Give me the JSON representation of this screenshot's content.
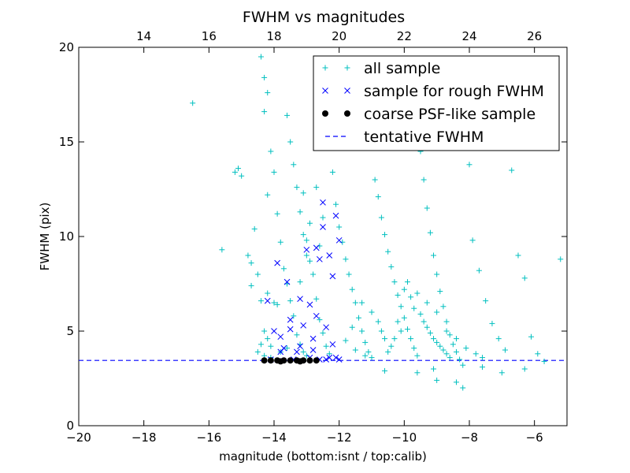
{
  "chart_data": {
    "type": "scatter",
    "title": "FWHM vs magnitudes",
    "xlabel": "magnitude (bottom:isnt / top:calib)",
    "ylabel": "FWHM (pix)",
    "xlim": [
      -20,
      -5
    ],
    "ylim": [
      0,
      20
    ],
    "x_ticks": [
      -20,
      -18,
      -16,
      -14,
      -12,
      -10,
      -8,
      -6
    ],
    "x_tick_labels": [
      "−20",
      "−18",
      "−16",
      "−14",
      "−12",
      "−10",
      "−8",
      "−6"
    ],
    "y_ticks": [
      0,
      5,
      10,
      15,
      20
    ],
    "y_tick_labels": [
      "0",
      "5",
      "10",
      "15",
      "20"
    ],
    "top_axis": {
      "offset": 32,
      "ticks": [
        14,
        16,
        18,
        20,
        22,
        24,
        26
      ],
      "tick_labels": [
        "14",
        "16",
        "18",
        "20",
        "22",
        "24",
        "26"
      ]
    },
    "grid": false,
    "legend_position": "top-right",
    "series": [
      {
        "name": "all sample",
        "marker": "plus",
        "color": "#00bfbf",
        "points": [
          [
            -16.5,
            17.05
          ],
          [
            -15.6,
            9.3
          ],
          [
            -15.2,
            13.4
          ],
          [
            -15.1,
            13.6
          ],
          [
            -15.0,
            13.2
          ],
          [
            -14.8,
            9.0
          ],
          [
            -14.7,
            8.6
          ],
          [
            -14.7,
            7.4
          ],
          [
            -14.6,
            10.4
          ],
          [
            -14.5,
            8.0
          ],
          [
            -14.4,
            6.6
          ],
          [
            -14.3,
            5.0
          ],
          [
            -14.2,
            4.6
          ],
          [
            -14.1,
            4.2
          ],
          [
            -14.2,
            12.2
          ],
          [
            -14.3,
            16.6
          ],
          [
            -14.4,
            19.5
          ],
          [
            -14.3,
            18.4
          ],
          [
            -14.2,
            17.6
          ],
          [
            -14.1,
            14.5
          ],
          [
            -14.0,
            13.4
          ],
          [
            -13.9,
            11.2
          ],
          [
            -13.8,
            9.7
          ],
          [
            -13.7,
            8.3
          ],
          [
            -13.6,
            7.5
          ],
          [
            -13.5,
            6.6
          ],
          [
            -13.4,
            5.8
          ],
          [
            -13.3,
            4.8
          ],
          [
            -13.2,
            4.3
          ],
          [
            -13.1,
            3.9
          ],
          [
            -13.0,
            3.7
          ],
          [
            -13.6,
            16.4
          ],
          [
            -13.5,
            15.0
          ],
          [
            -13.4,
            13.8
          ],
          [
            -13.3,
            12.6
          ],
          [
            -13.2,
            11.3
          ],
          [
            -13.1,
            10.1
          ],
          [
            -13.0,
            9.0
          ],
          [
            -12.8,
            8.0
          ],
          [
            -12.7,
            6.7
          ],
          [
            -12.6,
            5.6
          ],
          [
            -12.5,
            4.9
          ],
          [
            -12.4,
            4.2
          ],
          [
            -12.3,
            3.8
          ],
          [
            -12.2,
            13.4
          ],
          [
            -12.1,
            11.7
          ],
          [
            -12.0,
            10.5
          ],
          [
            -11.9,
            9.7
          ],
          [
            -11.8,
            8.8
          ],
          [
            -11.7,
            8.0
          ],
          [
            -11.6,
            7.2
          ],
          [
            -11.5,
            6.5
          ],
          [
            -11.4,
            5.7
          ],
          [
            -11.3,
            5.0
          ],
          [
            -11.2,
            4.4
          ],
          [
            -11.1,
            3.9
          ],
          [
            -11.0,
            3.6
          ],
          [
            -10.9,
            13.0
          ],
          [
            -10.8,
            12.1
          ],
          [
            -10.7,
            11.0
          ],
          [
            -10.6,
            10.1
          ],
          [
            -10.5,
            9.2
          ],
          [
            -10.4,
            8.4
          ],
          [
            -10.3,
            7.6
          ],
          [
            -10.2,
            6.9
          ],
          [
            -10.1,
            6.3
          ],
          [
            -10.0,
            5.7
          ],
          [
            -9.9,
            5.1
          ],
          [
            -9.8,
            4.6
          ],
          [
            -9.7,
            4.1
          ],
          [
            -9.6,
            3.7
          ],
          [
            -9.5,
            14.5
          ],
          [
            -9.4,
            13.0
          ],
          [
            -9.3,
            11.5
          ],
          [
            -9.2,
            10.2
          ],
          [
            -9.1,
            9.0
          ],
          [
            -9.0,
            8.0
          ],
          [
            -8.9,
            7.1
          ],
          [
            -8.8,
            6.3
          ],
          [
            -8.7,
            5.5
          ],
          [
            -8.6,
            4.8
          ],
          [
            -8.5,
            4.3
          ],
          [
            -8.4,
            3.9
          ],
          [
            -8.3,
            3.5
          ],
          [
            -8.2,
            3.2
          ],
          [
            -8.0,
            13.8
          ],
          [
            -7.9,
            9.8
          ],
          [
            -7.7,
            8.2
          ],
          [
            -7.5,
            6.6
          ],
          [
            -7.3,
            5.4
          ],
          [
            -7.1,
            4.6
          ],
          [
            -6.9,
            4.0
          ],
          [
            -6.7,
            13.5
          ],
          [
            -6.5,
            9.0
          ],
          [
            -6.3,
            7.8
          ],
          [
            -6.1,
            4.7
          ],
          [
            -5.9,
            3.8
          ],
          [
            -5.7,
            3.4
          ],
          [
            -5.2,
            8.8
          ],
          [
            -8.2,
            2.0
          ],
          [
            -8.4,
            2.3
          ],
          [
            -9.0,
            2.4
          ],
          [
            -9.6,
            2.8
          ],
          [
            -10.6,
            2.9
          ],
          [
            -9.1,
            3.0
          ],
          [
            -7.6,
            3.1
          ],
          [
            -7.0,
            2.8
          ],
          [
            -6.3,
            3.0
          ],
          [
            -10.0,
            7.2
          ],
          [
            -9.8,
            6.8
          ],
          [
            -9.7,
            6.2
          ],
          [
            -9.5,
            5.9
          ],
          [
            -9.4,
            5.5
          ],
          [
            -9.3,
            5.2
          ],
          [
            -9.2,
            4.9
          ],
          [
            -9.1,
            4.6
          ],
          [
            -9.0,
            4.4
          ],
          [
            -8.9,
            4.2
          ],
          [
            -8.8,
            4.0
          ],
          [
            -8.7,
            3.8
          ],
          [
            -8.6,
            3.6
          ],
          [
            -10.2,
            5.5
          ],
          [
            -10.1,
            5.0
          ],
          [
            -10.3,
            4.6
          ],
          [
            -10.4,
            4.2
          ],
          [
            -10.5,
            3.9
          ],
          [
            -9.9,
            7.6
          ],
          [
            -9.6,
            7.0
          ],
          [
            -9.3,
            6.5
          ],
          [
            -9.0,
            6.0
          ],
          [
            -8.7,
            5.0
          ],
          [
            -8.4,
            4.6
          ],
          [
            -8.1,
            4.1
          ],
          [
            -7.8,
            3.8
          ],
          [
            -7.6,
            3.6
          ],
          [
            -11.0,
            6.0
          ],
          [
            -10.8,
            5.5
          ],
          [
            -10.7,
            5.0
          ],
          [
            -10.6,
            4.6
          ],
          [
            -11.3,
            6.5
          ],
          [
            -11.6,
            5.2
          ],
          [
            -11.8,
            4.5
          ],
          [
            -11.5,
            4.0
          ],
          [
            -11.2,
            3.7
          ],
          [
            -14.5,
            3.9
          ],
          [
            -14.4,
            4.3
          ],
          [
            -14.3,
            3.7
          ],
          [
            -14.1,
            3.6
          ],
          [
            -13.8,
            3.9
          ],
          [
            -13.6,
            4.1
          ],
          [
            -13.9,
            6.4
          ],
          [
            -14.0,
            6.5
          ],
          [
            -14.2,
            7.0
          ],
          [
            -13.0,
            9.8
          ],
          [
            -12.9,
            8.7
          ],
          [
            -13.2,
            7.6
          ],
          [
            -12.6,
            9.5
          ],
          [
            -12.5,
            11.0
          ],
          [
            -12.9,
            10.7
          ],
          [
            -13.1,
            12.3
          ],
          [
            -12.7,
            12.6
          ]
        ]
      },
      {
        "name": "sample for rough FWHM",
        "marker": "x",
        "color": "#0000ff",
        "points": [
          [
            -14.2,
            6.6
          ],
          [
            -14.0,
            5.0
          ],
          [
            -13.9,
            8.6
          ],
          [
            -13.8,
            3.9
          ],
          [
            -13.6,
            7.6
          ],
          [
            -13.5,
            5.6
          ],
          [
            -13.4,
            3.5
          ],
          [
            -13.2,
            6.7
          ],
          [
            -13.1,
            5.3
          ],
          [
            -13.0,
            9.3
          ],
          [
            -12.9,
            6.4
          ],
          [
            -12.8,
            4.6
          ],
          [
            -12.7,
            9.4
          ],
          [
            -12.6,
            8.8
          ],
          [
            -12.5,
            11.8
          ],
          [
            -12.4,
            5.2
          ],
          [
            -12.3,
            9.0
          ],
          [
            -12.2,
            7.9
          ],
          [
            -12.1,
            11.1
          ],
          [
            -12.0,
            9.8
          ],
          [
            -12.3,
            3.6
          ],
          [
            -12.6,
            3.5
          ],
          [
            -12.9,
            3.6
          ],
          [
            -13.3,
            3.9
          ],
          [
            -13.7,
            4.1
          ],
          [
            -14.1,
            3.5
          ],
          [
            -12.2,
            4.3
          ],
          [
            -12.0,
            3.5
          ],
          [
            -12.1,
            3.6
          ],
          [
            -12.4,
            3.5
          ],
          [
            -12.5,
            10.5
          ],
          [
            -12.7,
            5.8
          ],
          [
            -13.5,
            5.1
          ],
          [
            -13.8,
            4.7
          ],
          [
            -13.2,
            4.2
          ],
          [
            -12.8,
            4.0
          ]
        ]
      },
      {
        "name": "coarse PSF-like sample",
        "marker": "dot",
        "color": "#000000",
        "points": [
          [
            -14.3,
            3.45
          ],
          [
            -14.1,
            3.45
          ],
          [
            -13.9,
            3.45
          ],
          [
            -13.7,
            3.45
          ],
          [
            -13.5,
            3.45
          ],
          [
            -13.3,
            3.45
          ],
          [
            -13.1,
            3.45
          ],
          [
            -12.9,
            3.45
          ],
          [
            -12.7,
            3.45
          ],
          [
            -13.2,
            3.4
          ],
          [
            -13.8,
            3.4
          ]
        ]
      }
    ],
    "reference_line": {
      "name": "tentative FWHM",
      "y": 3.45,
      "color": "#0000ff",
      "style": "dashed"
    }
  }
}
